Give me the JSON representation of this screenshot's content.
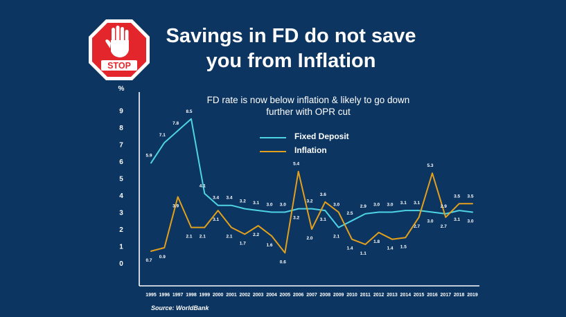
{
  "header": {
    "title_line1": "Savings in FD do not save",
    "title_line2": "you from Inflation",
    "stop_sign_text": "STOP"
  },
  "colors": {
    "background": "#0c3561",
    "fixed_deposit": "#4fd4e6",
    "inflation": "#e3a01c",
    "stop_red": "#e2262b",
    "axis": "#ffffff"
  },
  "chart_data": {
    "type": "line",
    "title": "FD rate is now below inflation & likely to go down further with OPR cut",
    "subtitle_line1": "FD rate is now below inflation & likely to go down",
    "subtitle_line2": "further with OPR cut",
    "ylabel": "%",
    "xlabel": "",
    "ylim": [
      0,
      10
    ],
    "yticks": [
      0,
      1,
      2,
      3,
      4,
      5,
      6,
      7,
      8,
      9
    ],
    "categories": [
      "1995",
      "1996",
      "1997",
      "1998",
      "1999",
      "2000",
      "2001",
      "2002",
      "2003",
      "2004",
      "2005",
      "2006",
      "2007",
      "2008",
      "2009",
      "2010",
      "2011",
      "2012",
      "2013",
      "2014",
      "2015",
      "2016",
      "2017",
      "2018",
      "2019"
    ],
    "series": [
      {
        "name": "Fixed Deposit",
        "values": [
          5.9,
          7.1,
          7.8,
          8.5,
          4.1,
          3.4,
          3.4,
          3.2,
          3.1,
          3.0,
          3.0,
          3.2,
          3.2,
          3.1,
          2.1,
          2.5,
          2.9,
          3.0,
          3.0,
          3.1,
          3.1,
          3.0,
          2.9,
          3.1,
          3.0
        ],
        "labels": [
          "5.9",
          "7.1",
          "7.8",
          "8.5",
          "4.1",
          "3.4",
          "3.4",
          "3.2",
          "3.1",
          "3.0",
          "3.0",
          "3.2",
          "3.2",
          "3.1",
          "2.1",
          "2.5",
          "2.9",
          "3.0",
          "3.0",
          "3.1",
          "3.1",
          "3.0",
          "2.9",
          "3.1",
          "3.0"
        ]
      },
      {
        "name": "Inflation",
        "values": [
          0.7,
          0.9,
          3.9,
          2.1,
          2.1,
          3.1,
          2.1,
          1.7,
          2.2,
          1.6,
          0.6,
          5.4,
          2.0,
          3.6,
          3.0,
          1.4,
          1.1,
          1.8,
          1.4,
          1.5,
          2.7,
          5.3,
          2.7,
          3.5,
          3.5
        ],
        "labels": [
          "0.7",
          "0.9",
          "3.9",
          "2.1",
          "2.1",
          "3.1",
          "2.1",
          "1.7",
          "2.2",
          "1.6",
          "0.6",
          "5.4",
          "2.0",
          "3.6",
          "3.0",
          "1.4",
          "1.1",
          "1.8",
          "1.4",
          "1.5",
          "2.7",
          "5.3",
          "2.7",
          "3.5",
          "3.5"
        ]
      }
    ],
    "legend": [
      "Fixed Deposit",
      "Inflation"
    ],
    "legend_position": "top-center",
    "grid": false,
    "source": "Source: WorldBank"
  }
}
